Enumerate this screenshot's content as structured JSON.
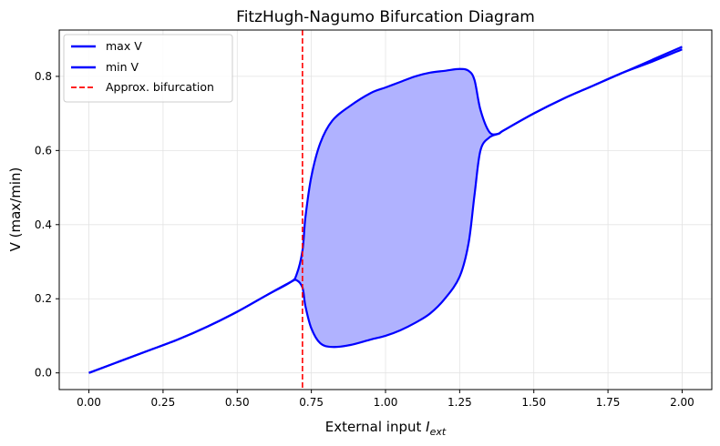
{
  "chart_data": {
    "type": "line",
    "title": "FitzHugh-Nagumo Bifurcation Diagram",
    "xlabel_main": "External input ",
    "xlabel_symbol": "I",
    "xlabel_subscript": "ext",
    "ylabel": "V (max/min)",
    "xlim": [
      -0.1,
      2.1
    ],
    "ylim": [
      -0.045,
      0.925
    ],
    "xticks": [
      0.0,
      0.25,
      0.5,
      0.75,
      1.0,
      1.25,
      1.5,
      1.75,
      2.0
    ],
    "xtick_labels": [
      "0.00",
      "0.25",
      "0.50",
      "0.75",
      "1.00",
      "1.25",
      "1.50",
      "1.75",
      "2.00"
    ],
    "yticks": [
      0.0,
      0.2,
      0.4,
      0.6,
      0.8
    ],
    "ytick_labels": [
      "0.0",
      "0.2",
      "0.4",
      "0.6",
      "0.8"
    ],
    "grid": true,
    "legend_position": "top-left",
    "bifurcation_x": 0.72,
    "fill_between": true,
    "colors": {
      "max": "#0000ff",
      "min": "#0000ff",
      "bifurcation": "#ff0000",
      "fill": "#b0b2ff"
    },
    "series": [
      {
        "name": "max V",
        "x": [
          0.0,
          0.1,
          0.2,
          0.3,
          0.4,
          0.5,
          0.6,
          0.68,
          0.7,
          0.72,
          0.73,
          0.75,
          0.78,
          0.82,
          0.88,
          0.95,
          1.0,
          1.05,
          1.1,
          1.15,
          1.2,
          1.25,
          1.28,
          1.3,
          1.32,
          1.35,
          1.38,
          1.4,
          1.5,
          1.6,
          1.7,
          1.8,
          1.9,
          2.0
        ],
        "y": [
          0.0,
          0.03,
          0.06,
          0.09,
          0.125,
          0.165,
          0.21,
          0.245,
          0.265,
          0.33,
          0.42,
          0.53,
          0.62,
          0.68,
          0.72,
          0.755,
          0.77,
          0.785,
          0.8,
          0.81,
          0.815,
          0.82,
          0.815,
          0.79,
          0.71,
          0.65,
          0.645,
          0.655,
          0.7,
          0.74,
          0.775,
          0.81,
          0.845,
          0.88
        ]
      },
      {
        "name": "min V",
        "x": [
          0.0,
          0.1,
          0.2,
          0.3,
          0.4,
          0.5,
          0.6,
          0.68,
          0.7,
          0.72,
          0.73,
          0.75,
          0.78,
          0.82,
          0.88,
          0.95,
          1.0,
          1.05,
          1.1,
          1.15,
          1.2,
          1.25,
          1.28,
          1.3,
          1.32,
          1.35,
          1.38,
          1.4,
          1.5,
          1.6,
          1.7,
          1.8,
          1.9,
          2.0
        ],
        "y": [
          0.0,
          0.03,
          0.06,
          0.09,
          0.125,
          0.165,
          0.21,
          0.245,
          0.25,
          0.23,
          0.18,
          0.12,
          0.08,
          0.07,
          0.075,
          0.09,
          0.1,
          0.115,
          0.135,
          0.16,
          0.2,
          0.26,
          0.35,
          0.48,
          0.6,
          0.635,
          0.645,
          0.655,
          0.7,
          0.74,
          0.775,
          0.81,
          0.84,
          0.873
        ]
      }
    ],
    "legend": [
      {
        "label": "max V",
        "style": "solid",
        "color": "#0000ff"
      },
      {
        "label": "min V",
        "style": "solid",
        "color": "#0000ff"
      },
      {
        "label": "Approx. bifurcation",
        "style": "dashed",
        "color": "#ff0000"
      }
    ]
  }
}
